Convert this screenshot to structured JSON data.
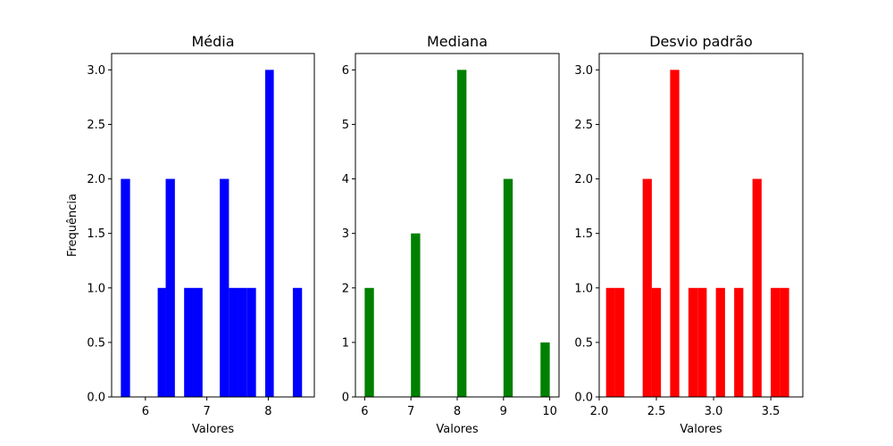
{
  "chart_data": [
    {
      "type": "bar",
      "title": "Média",
      "xlabel": "Valores",
      "ylabel": "Frequência",
      "color": "#0000ff",
      "xlim": [
        5.45,
        8.75
      ],
      "ylim": [
        0,
        3.15
      ],
      "xticks": [
        {
          "value": 6,
          "label": "6"
        },
        {
          "value": 7,
          "label": "7"
        },
        {
          "value": 8,
          "label": "8"
        }
      ],
      "yticks": [
        {
          "value": 0,
          "label": "0.0"
        },
        {
          "value": 0.5,
          "label": "0.5"
        },
        {
          "value": 1,
          "label": "1.0"
        },
        {
          "value": 1.5,
          "label": "1.5"
        },
        {
          "value": 2,
          "label": "2.0"
        },
        {
          "value": 2.5,
          "label": "2.5"
        },
        {
          "value": 3,
          "label": "3.0"
        }
      ],
      "bins": [
        {
          "x0": 5.6,
          "x1": 5.75,
          "value": 2
        },
        {
          "x0": 6.2,
          "x1": 6.33,
          "value": 1
        },
        {
          "x0": 6.33,
          "x1": 6.48,
          "value": 2
        },
        {
          "x0": 6.63,
          "x1": 6.78,
          "value": 1
        },
        {
          "x0": 6.78,
          "x1": 6.93,
          "value": 1
        },
        {
          "x0": 7.21,
          "x1": 7.36,
          "value": 2
        },
        {
          "x0": 7.36,
          "x1": 7.5,
          "value": 1
        },
        {
          "x0": 7.5,
          "x1": 7.65,
          "value": 1
        },
        {
          "x0": 7.65,
          "x1": 7.8,
          "value": 1
        },
        {
          "x0": 7.95,
          "x1": 8.09,
          "value": 3
        },
        {
          "x0": 8.4,
          "x1": 8.55,
          "value": 1
        }
      ]
    },
    {
      "type": "bar",
      "title": "Mediana",
      "xlabel": "Valores",
      "ylabel": "",
      "color": "#008000",
      "xlim": [
        5.8,
        10.2
      ],
      "ylim": [
        0,
        6.3
      ],
      "xticks": [
        {
          "value": 6,
          "label": "6"
        },
        {
          "value": 7,
          "label": "7"
        },
        {
          "value": 8,
          "label": "8"
        },
        {
          "value": 9,
          "label": "9"
        },
        {
          "value": 10,
          "label": "10"
        }
      ],
      "yticks": [
        {
          "value": 0,
          "label": "0"
        },
        {
          "value": 1,
          "label": "1"
        },
        {
          "value": 2,
          "label": "2"
        },
        {
          "value": 3,
          "label": "3"
        },
        {
          "value": 4,
          "label": "4"
        },
        {
          "value": 5,
          "label": "5"
        },
        {
          "value": 6,
          "label": "6"
        }
      ],
      "bins": [
        {
          "x0": 6.0,
          "x1": 6.2,
          "value": 2
        },
        {
          "x0": 7.0,
          "x1": 7.2,
          "value": 3
        },
        {
          "x0": 8.0,
          "x1": 8.2,
          "value": 6
        },
        {
          "x0": 9.0,
          "x1": 9.2,
          "value": 4
        },
        {
          "x0": 9.8,
          "x1": 10.0,
          "value": 1
        }
      ]
    },
    {
      "type": "bar",
      "title": "Desvio padrão",
      "xlabel": "Valores",
      "ylabel": "",
      "color": "#ff0000",
      "xlim": [
        2.0,
        3.78
      ],
      "ylim": [
        0,
        3.15
      ],
      "xticks": [
        {
          "value": 2.0,
          "label": "2.0"
        },
        {
          "value": 2.5,
          "label": "2.5"
        },
        {
          "value": 3.0,
          "label": "3.0"
        },
        {
          "value": 3.5,
          "label": "3.5"
        }
      ],
      "yticks": [
        {
          "value": 0,
          "label": "0.0"
        },
        {
          "value": 0.5,
          "label": "0.5"
        },
        {
          "value": 1,
          "label": "1.0"
        },
        {
          "value": 1.5,
          "label": "1.5"
        },
        {
          "value": 2,
          "label": "2.0"
        },
        {
          "value": 2.5,
          "label": "2.5"
        },
        {
          "value": 3,
          "label": "3.0"
        }
      ],
      "bins": [
        {
          "x0": 2.06,
          "x1": 2.14,
          "value": 1
        },
        {
          "x0": 2.14,
          "x1": 2.22,
          "value": 1
        },
        {
          "x0": 2.38,
          "x1": 2.46,
          "value": 2
        },
        {
          "x0": 2.46,
          "x1": 2.54,
          "value": 1
        },
        {
          "x0": 2.62,
          "x1": 2.7,
          "value": 3
        },
        {
          "x0": 2.78,
          "x1": 2.86,
          "value": 1
        },
        {
          "x0": 2.86,
          "x1": 2.94,
          "value": 1
        },
        {
          "x0": 3.02,
          "x1": 3.1,
          "value": 1
        },
        {
          "x0": 3.18,
          "x1": 3.26,
          "value": 1
        },
        {
          "x0": 3.34,
          "x1": 3.42,
          "value": 2
        },
        {
          "x0": 3.5,
          "x1": 3.58,
          "value": 1
        },
        {
          "x0": 3.58,
          "x1": 3.66,
          "value": 1
        }
      ]
    }
  ]
}
